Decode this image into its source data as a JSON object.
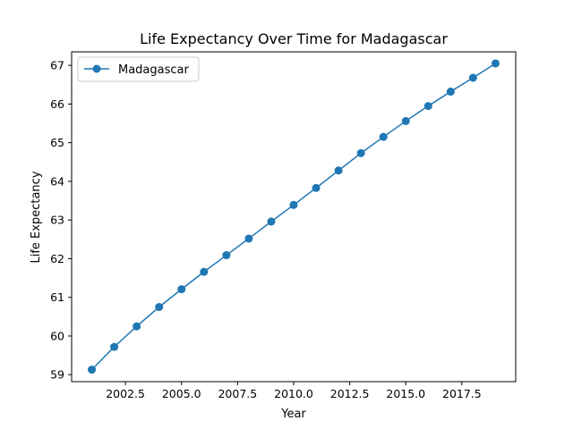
{
  "chart_data": {
    "type": "line",
    "title": "Life Expectancy Over Time for Madagascar",
    "xlabel": "Year",
    "ylabel": "Life Expectancy",
    "x": [
      2001,
      2002,
      2003,
      2004,
      2005,
      2006,
      2007,
      2008,
      2009,
      2010,
      2011,
      2012,
      2013,
      2014,
      2015,
      2016,
      2017,
      2018,
      2019
    ],
    "series": [
      {
        "name": "Madagascar",
        "color": "#1f77b4",
        "marker": "circle",
        "values": [
          59.13,
          59.72,
          60.25,
          60.75,
          61.21,
          61.66,
          62.09,
          62.52,
          62.96,
          63.39,
          63.83,
          64.28,
          64.73,
          65.15,
          65.56,
          65.95,
          66.32,
          66.68,
          67.05
        ]
      }
    ],
    "xlim": [
      2000.1,
      2019.9
    ],
    "ylim": [
      58.82,
      67.35
    ],
    "xticks": [
      2002.5,
      2005.0,
      2007.5,
      2010.0,
      2012.5,
      2015.0,
      2017.5
    ],
    "xtick_labels": [
      "2002.5",
      "2005.0",
      "2007.5",
      "2010.0",
      "2012.5",
      "2015.0",
      "2017.5"
    ],
    "yticks": [
      59,
      60,
      61,
      62,
      63,
      64,
      65,
      66,
      67
    ],
    "ytick_labels": [
      "59",
      "60",
      "61",
      "62",
      "63",
      "64",
      "65",
      "66",
      "67"
    ],
    "grid": false,
    "legend_position": "upper-left"
  }
}
